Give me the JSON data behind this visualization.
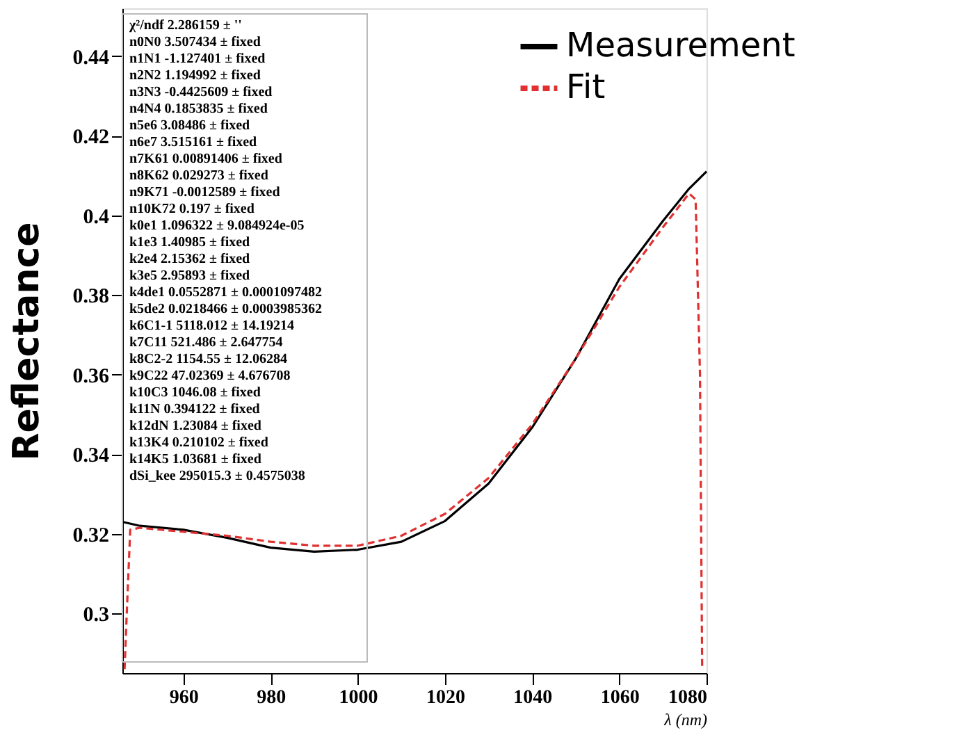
{
  "chart_data": {
    "type": "line",
    "ylabel": "Reflectance",
    "xlabel": "λ (nm)",
    "xlim": [
      946,
      1080
    ],
    "xticks": [
      960,
      980,
      1000,
      1020,
      1040,
      1060,
      1080
    ],
    "ylim": [
      0.285,
      0.452
    ],
    "yticks": [
      0.3,
      0.32,
      0.34,
      0.36,
      0.38,
      0.4,
      0.42,
      0.44
    ],
    "grid": false,
    "legend": "top right",
    "marker": "none",
    "series": [
      {
        "name": "Measurement",
        "color": "#000000",
        "line_style": "solid",
        "x": [
          946,
          950,
          960,
          970,
          980,
          990,
          1000,
          1010,
          1020,
          1030,
          1040,
          1050,
          1060,
          1070,
          1076,
          1080
        ],
        "values": [
          0.323,
          0.322,
          0.321,
          0.319,
          0.3165,
          0.3155,
          0.316,
          0.318,
          0.3232,
          0.3326,
          0.3467,
          0.364,
          0.384,
          0.3986,
          0.4067,
          0.411
        ]
      },
      {
        "name": "Fit",
        "color": "#e03030",
        "line_style": "dashed",
        "x": [
          946.5,
          947,
          947.8,
          950,
          960,
          970,
          980,
          990,
          1000,
          1010,
          1020,
          1030,
          1040,
          1050,
          1060,
          1070,
          1076,
          1077.5,
          1078.5,
          1079
        ],
        "values": [
          0.286,
          0.3,
          0.321,
          0.3215,
          0.3205,
          0.3195,
          0.318,
          0.317,
          0.317,
          0.3195,
          0.325,
          0.334,
          0.3475,
          0.364,
          0.382,
          0.397,
          0.4055,
          0.404,
          0.36,
          0.286
        ]
      }
    ],
    "annotations": [
      "χ²/ndf  2.286159 ± ''",
      "n0N0  3.507434 ± fixed",
      "n1N1  -1.127401 ± fixed",
      "n2N2  1.194992 ± fixed",
      "n3N3  -0.4425609 ± fixed",
      "n4N4  0.1853835 ± fixed",
      "n5e6  3.08486 ± fixed",
      "n6e7  3.515161 ± fixed",
      "n7K61  0.00891406 ± fixed",
      "n8K62  0.029273 ± fixed",
      "n9K71  -0.0012589 ± fixed",
      "n10K72  0.197 ± fixed",
      "k0e1  1.096322 ± 9.084924e-05",
      "k1e3  1.40985 ± fixed",
      "k2e4  2.15362 ± fixed",
      "k3e5  2.95893 ± fixed",
      "k4de1  0.0552871 ± 0.0001097482",
      "k5de2  0.0218466 ± 0.0003985362",
      "k6C1-1  5118.012 ± 14.19214",
      "k7C11  521.486 ± 2.647754",
      "k8C2-2  1154.55 ± 12.06284",
      "k9C22  47.02369 ± 4.676708",
      "k10C3  1046.08 ± fixed",
      "k11N  0.394122 ± fixed",
      "k12dN  1.23084 ± fixed",
      "k13K4  0.210102 ± fixed",
      "k14K5  1.03681 ± fixed",
      "dSi_kee  295015.3 ± 0.4575038"
    ]
  }
}
